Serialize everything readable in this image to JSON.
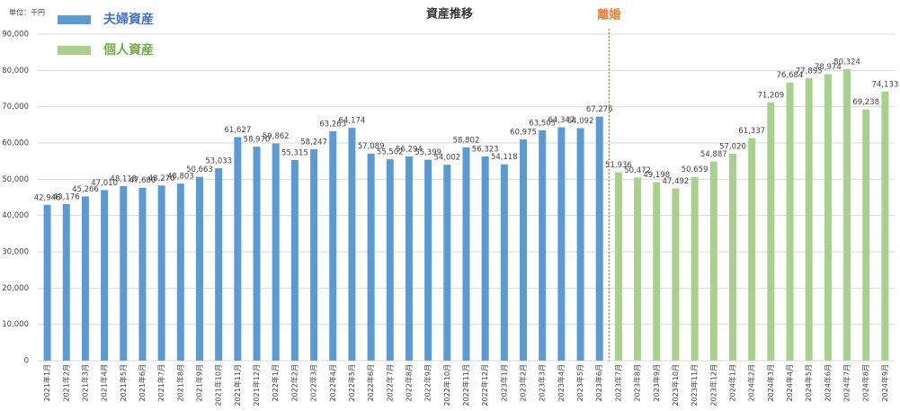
{
  "chart_data": {
    "type": "bar",
    "title": "資産推移",
    "unit_label": "単位：千円",
    "divider_label": "離婚",
    "categories": [
      "2021年1月",
      "2021年2月",
      "2021年3月",
      "2021年4月",
      "2021年5月",
      "2021年6月",
      "2021年7月",
      "2021年8月",
      "2021年9月",
      "2021年10月",
      "2021年11月",
      "2021年12月",
      "2022年1月",
      "2022年2月",
      "2022年3月",
      "2022年4月",
      "2022年5月",
      "2022年6月",
      "2022年7月",
      "2022年8月",
      "2022年9月",
      "2022年10月",
      "2022年11月",
      "2022年12月",
      "2023年1月",
      "2023年2月",
      "2023年3月",
      "2023年4月",
      "2023年5月",
      "2023年6月",
      "2023年7月",
      "2023年8月",
      "2023年9月",
      "2023年10月",
      "2023年11月",
      "2023年12月",
      "2024年1月",
      "2024年2月",
      "2024年3月",
      "2024年4月",
      "2024年5月",
      "2024年6月",
      "2024年7月",
      "2024年8月",
      "2024年9月"
    ],
    "series": [
      {
        "name": "夫婦資産",
        "color": "#5b9bd5",
        "legend_text_color": "#4472c4",
        "values": [
          42946,
          43176,
          45266,
          47010,
          48118,
          47680,
          48270,
          48803,
          50663,
          53033,
          61627,
          58970,
          59862,
          55315,
          58247,
          63263,
          64174,
          57089,
          55502,
          56294,
          55399,
          54002,
          58802,
          56323,
          54118,
          60975,
          63505,
          64347,
          64092,
          67276,
          null,
          null,
          null,
          null,
          null,
          null,
          null,
          null,
          null,
          null,
          null,
          null,
          null,
          null,
          null
        ],
        "value_labels": [
          "42,946",
          "43,176",
          "45,266",
          "47,010",
          "48,118",
          "47,680",
          "48,270",
          "48,803",
          "50,663",
          "53,033",
          "61,627",
          "58,970",
          "59,862",
          "55,315",
          "58,247",
          "63,263",
          "64,174",
          "57,089",
          "55,502",
          "56,294",
          "55,399",
          "54,002",
          "58,802",
          "56,323",
          "54,118",
          "60,975",
          "63,505",
          "64,347",
          "64,092",
          "67,276",
          null,
          null,
          null,
          null,
          null,
          null,
          null,
          null,
          null,
          null,
          null,
          null,
          null,
          null,
          null
        ]
      },
      {
        "name": "個人資産",
        "color": "#a9d18e",
        "legend_text_color": "#70ad47",
        "values": [
          null,
          null,
          null,
          null,
          null,
          null,
          null,
          null,
          null,
          null,
          null,
          null,
          null,
          null,
          null,
          null,
          null,
          null,
          null,
          null,
          null,
          null,
          null,
          null,
          null,
          null,
          null,
          null,
          null,
          null,
          51936,
          50472,
          49198,
          47492,
          50659,
          54887,
          57020,
          61337,
          71209,
          76684,
          77895,
          78974,
          80324,
          69238,
          74133
        ],
        "value_labels": [
          null,
          null,
          null,
          null,
          null,
          null,
          null,
          null,
          null,
          null,
          null,
          null,
          null,
          null,
          null,
          null,
          null,
          null,
          null,
          null,
          null,
          null,
          null,
          null,
          null,
          null,
          null,
          null,
          null,
          null,
          "51,936",
          "50,472",
          "49,198",
          "47,492",
          "50,659",
          "54,887",
          "57,020",
          "61,337",
          "71,209",
          "76,684",
          "77,895",
          "78,974",
          "80,324",
          "69,238",
          "74,133"
        ]
      }
    ],
    "ylim": [
      0,
      90000
    ],
    "yticks": [
      0,
      {
        "value": 10000,
        "label": "10,000"
      },
      {
        "value": 20000,
        "label": "20,000"
      },
      {
        "value": 30000,
        "label": "30,000"
      },
      {
        "value": 40000,
        "label": "40,000"
      },
      {
        "value": 50000,
        "label": "50,000"
      },
      {
        "value": 60000,
        "label": "60,000"
      },
      {
        "value": 70000,
        "label": "70,000"
      },
      {
        "value": 80000,
        "label": "80,000"
      },
      {
        "value": 90000,
        "label": "90,000"
      }
    ],
    "grid": true
  }
}
